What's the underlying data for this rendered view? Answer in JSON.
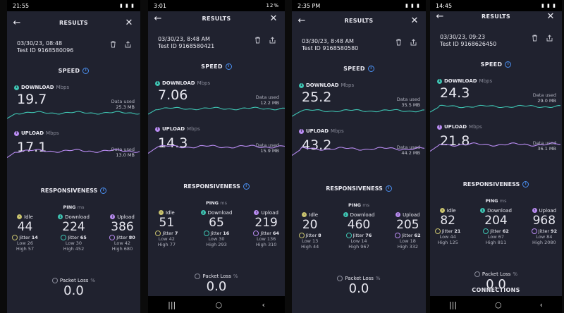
{
  "phones": [
    {
      "status_left": "21:55",
      "status_right": "▮ ▮ ▮",
      "title": "RESULTS",
      "datetime": "03/30/23, 08:48",
      "test_id": "Test ID 9168580096",
      "speed_title": "SPEED",
      "download_label": "DOWNLOAD",
      "upload_label": "UPLOAD",
      "unit_mbps": "Mbps",
      "download": "19.7",
      "upload": "17.1",
      "data_used_label": "Data used",
      "download_used": "25.3 MB",
      "upload_used": "13.0 MB",
      "responsiveness_title": "RESPONSIVENESS",
      "ping_label": "PING",
      "ping_unit": "ms",
      "idle_label": "Idle",
      "dl_label": "Download",
      "ul_label": "Upload",
      "idle": "44",
      "ping_dl": "224",
      "ping_ul": "386",
      "jitter_label": "Jitter",
      "jitter_idle": "14",
      "jitter_dl": "65",
      "jitter_ul": "80",
      "low_label": "Low",
      "high_label": "High",
      "low_idle": "26",
      "high_idle": "57",
      "low_dl": "30",
      "high_dl": "452",
      "low_ul": "42",
      "high_ul": "680",
      "packet_loss_label": "Packet Loss",
      "packet_loss_unit": "%",
      "packet_loss": "0.0"
    },
    {
      "status_left": "3:01",
      "status_right": "12%",
      "title": "RESULTS",
      "datetime": "03/30/23, 8:48 AM",
      "test_id": "Test ID 9168580421",
      "speed_title": "SPEED",
      "download_label": "DOWNLOAD",
      "upload_label": "UPLOAD",
      "unit_mbps": "Mbps",
      "download": "7.06",
      "upload": "14.3",
      "data_used_label": "Data used",
      "download_used": "12.2 MB",
      "upload_used": "15.9 MB",
      "responsiveness_title": "RESPONSIVENESS",
      "ping_label": "PING",
      "ping_unit": "ms",
      "idle_label": "Idle",
      "dl_label": "Download",
      "ul_label": "Upload",
      "idle": "51",
      "ping_dl": "65",
      "ping_ul": "219",
      "jitter_label": "Jitter",
      "jitter_idle": "7",
      "jitter_dl": "16",
      "jitter_ul": "64",
      "low_label": "Low",
      "high_label": "High",
      "low_idle": "42",
      "high_idle": "77",
      "low_dl": "30",
      "high_dl": "293",
      "low_ul": "136",
      "high_ul": "310",
      "packet_loss_label": "Packet Loss",
      "packet_loss_unit": "%",
      "packet_loss": "0.0"
    },
    {
      "status_left": "2:35 PM",
      "status_right": "▮ ▮ ▮",
      "title": "RESULTS",
      "datetime": "03/30/23, 8:48 AM",
      "test_id": "Test ID 9168580580",
      "speed_title": "SPEED",
      "download_label": "DOWNLOAD",
      "upload_label": "UPLOAD",
      "unit_mbps": "Mbps",
      "download": "25.2",
      "upload": "43.2",
      "data_used_label": "Data used",
      "download_used": "35.5 MB",
      "upload_used": "44.2 MB",
      "responsiveness_title": "RESPONSIVENESS",
      "ping_label": "PING",
      "ping_unit": "ms",
      "idle_label": "Idle",
      "dl_label": "Download",
      "ul_label": "Upload",
      "idle": "20",
      "ping_dl": "460",
      "ping_ul": "205",
      "jitter_label": "Jitter",
      "jitter_idle": "8",
      "jitter_dl": "76",
      "jitter_ul": "62",
      "low_label": "Low",
      "high_label": "High",
      "low_idle": "13",
      "high_idle": "44",
      "low_dl": "14",
      "high_dl": "967",
      "low_ul": "18",
      "high_ul": "332",
      "packet_loss_label": "Packet Loss",
      "packet_loss_unit": "%",
      "packet_loss": "0.0"
    },
    {
      "status_left": "14:45",
      "status_right": "▮ ▮ ▮",
      "title": "RESULTS",
      "datetime": "03/30/23, 09:23",
      "test_id": "Test ID 9168626450",
      "speed_title": "SPEED",
      "download_label": "DOWNLOAD",
      "upload_label": "UPLOAD",
      "unit_mbps": "Mbps",
      "download": "24.3",
      "upload": "21.8",
      "data_used_label": "Data used",
      "download_used": "29.0 MB",
      "upload_used": "36.1 MB",
      "responsiveness_title": "RESPONSIVENESS",
      "ping_label": "PING",
      "ping_unit": "ms",
      "idle_label": "Idle",
      "dl_label": "Download",
      "ul_label": "Upload",
      "idle": "82",
      "ping_dl": "204",
      "ping_ul": "968",
      "jitter_label": "Jitter",
      "jitter_idle": "21",
      "jitter_dl": "62",
      "jitter_ul": "92",
      "low_label": "Low",
      "high_label": "High",
      "low_idle": "44",
      "high_idle": "125",
      "low_dl": "67",
      "high_dl": "811",
      "low_ul": "84",
      "high_ul": "2080",
      "packet_loss_label": "Packet Loss",
      "packet_loss_unit": "%",
      "packet_loss": "0.0",
      "next_section_title": "CONNECTIONS"
    }
  ],
  "colors": {
    "download": "#3ec4b2",
    "upload": "#b98cf2",
    "background": "#20222f",
    "accent": "#4a8ff0"
  }
}
